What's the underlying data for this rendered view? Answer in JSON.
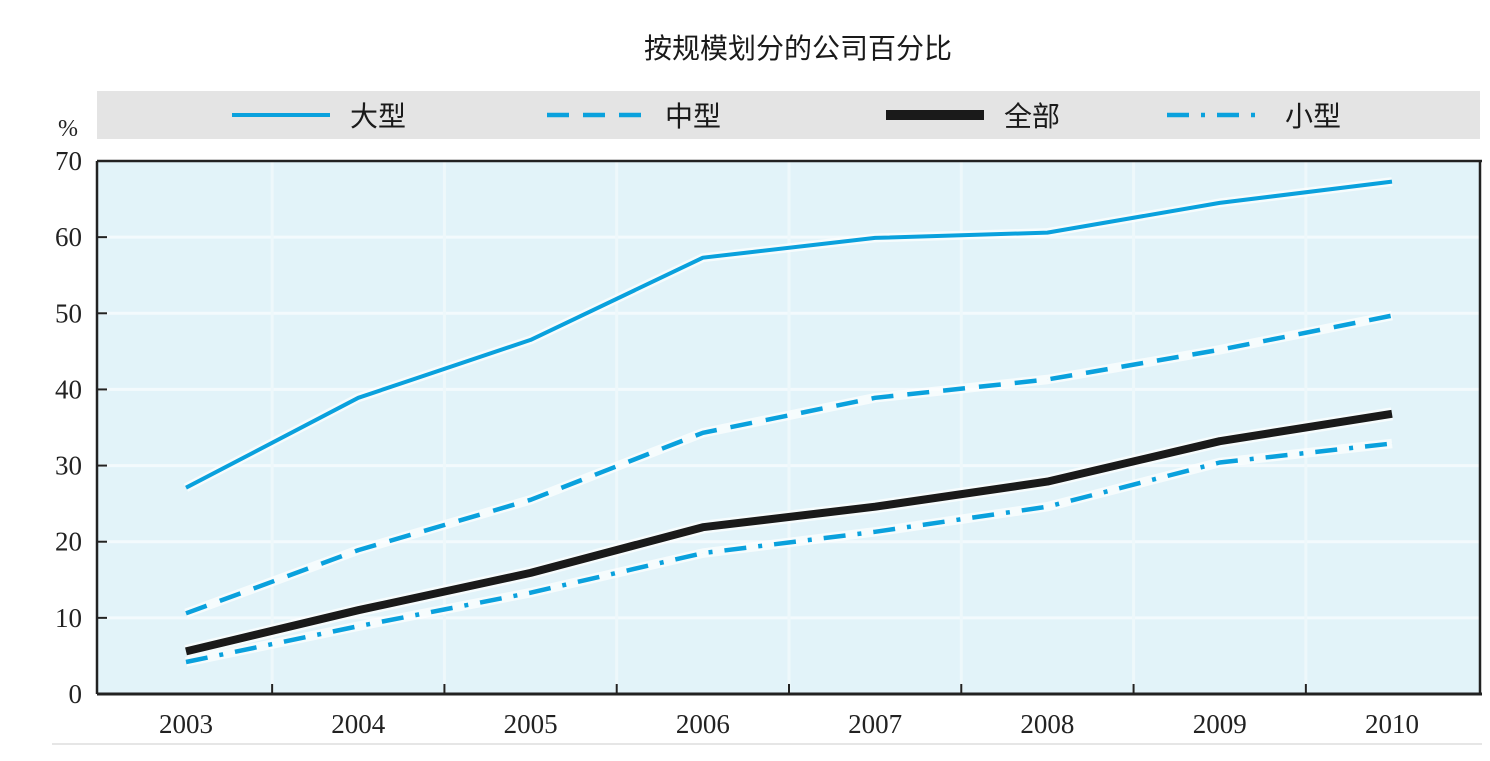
{
  "chart_data": {
    "type": "line",
    "title": "按规模划分的公司百分比",
    "xlabel": "",
    "ylabel": "%",
    "x": [
      "2003",
      "2004",
      "2005",
      "2006",
      "2007",
      "2008",
      "2009",
      "2010"
    ],
    "ylim": [
      0,
      70
    ],
    "yticks": [
      "0",
      "10",
      "20",
      "30",
      "40",
      "50",
      "60",
      "70"
    ],
    "grid": true,
    "legend_position": "top",
    "series": [
      {
        "name": "大型",
        "style": "solid",
        "color": "#0aa1dd",
        "values": [
          27.1,
          38.9,
          46.5,
          57.3,
          59.9,
          60.6,
          64.5,
          67.3
        ]
      },
      {
        "name": "中型",
        "style": "dashed",
        "color": "#0aa1dd",
        "values": [
          10.6,
          18.9,
          25.5,
          34.3,
          38.9,
          41.3,
          45.2,
          49.7
        ]
      },
      {
        "name": "全部",
        "style": "solid-thick",
        "color": "#1a1a1a",
        "values": [
          5.6,
          11.0,
          15.9,
          21.9,
          24.6,
          27.9,
          33.2,
          36.8
        ]
      },
      {
        "name": "小型",
        "style": "dash-dot",
        "color": "#0aa1dd",
        "values": [
          4.2,
          8.9,
          13.3,
          18.5,
          21.3,
          24.6,
          30.4,
          32.9
        ]
      }
    ]
  },
  "colors": {
    "plot_background": "#e2f3f9",
    "legend_background": "#e4e4e4",
    "axis": "#222222"
  }
}
